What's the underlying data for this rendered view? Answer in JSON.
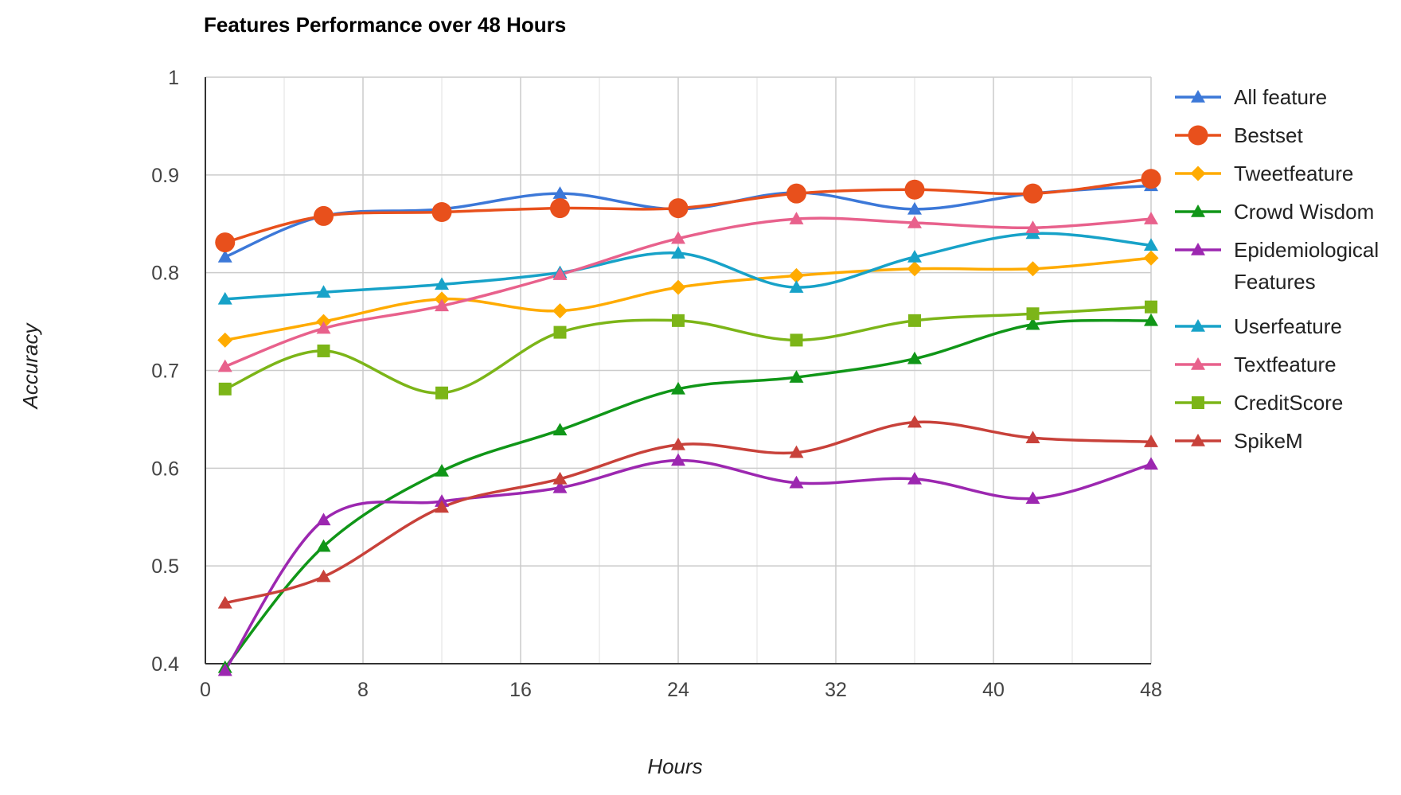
{
  "chart_data": {
    "type": "line",
    "title": "Features Performance over 48 Hours",
    "xlabel": "Hours",
    "ylabel": "Accuracy",
    "xlim": [
      0,
      48
    ],
    "ylim": [
      0.4,
      1
    ],
    "x_ticks": [
      "0",
      "8",
      "16",
      "24",
      "32",
      "40",
      "48"
    ],
    "y_ticks": [
      "0.4",
      "0.5",
      "0.6",
      "0.7",
      "0.8",
      "0.9",
      "1"
    ],
    "grid": true,
    "smooth": true,
    "legend_position": "right",
    "x": [
      1,
      6,
      12,
      18,
      24,
      30,
      36,
      42,
      48
    ],
    "series": [
      {
        "name": "All feature",
        "color": "#3c78d8",
        "marker": "triangle",
        "values": [
          0.816,
          0.858,
          0.865,
          0.881,
          0.865,
          0.882,
          0.865,
          0.881,
          0.889
        ]
      },
      {
        "name": "Bestset",
        "color": "#e8501c",
        "marker": "circle",
        "values": [
          0.831,
          0.858,
          0.862,
          0.866,
          0.866,
          0.881,
          0.885,
          0.881,
          0.896
        ]
      },
      {
        "name": "Tweetfeature",
        "color": "#ffab00",
        "marker": "diamond",
        "values": [
          0.731,
          0.75,
          0.773,
          0.761,
          0.785,
          0.797,
          0.804,
          0.804,
          0.815
        ]
      },
      {
        "name": "Crowd Wisdom",
        "color": "#109618",
        "marker": "triangle",
        "values": [
          0.396,
          0.52,
          0.597,
          0.639,
          0.681,
          0.693,
          0.712,
          0.747,
          0.751
        ]
      },
      {
        "name": "Epidemiological Features",
        "label_lines": [
          "Epidemiological",
          "Features"
        ],
        "color": "#9c27b0",
        "marker": "triangle",
        "values": [
          0.393,
          0.547,
          0.566,
          0.58,
          0.608,
          0.585,
          0.589,
          0.569,
          0.604
        ]
      },
      {
        "name": "Userfeature",
        "color": "#17a2c8",
        "marker": "triangle",
        "values": [
          0.773,
          0.78,
          0.788,
          0.8,
          0.82,
          0.785,
          0.816,
          0.84,
          0.828
        ]
      },
      {
        "name": "Textfeature",
        "color": "#e8618c",
        "marker": "triangle",
        "values": [
          0.704,
          0.743,
          0.766,
          0.798,
          0.835,
          0.855,
          0.851,
          0.846,
          0.855
        ]
      },
      {
        "name": "CreditScore",
        "color": "#7cb518",
        "marker": "square",
        "values": [
          0.681,
          0.72,
          0.677,
          0.739,
          0.751,
          0.731,
          0.751,
          0.758,
          0.765
        ]
      },
      {
        "name": "SpikeM",
        "color": "#c8413a",
        "marker": "triangle",
        "values": [
          0.462,
          0.489,
          0.56,
          0.589,
          0.624,
          0.616,
          0.647,
          0.631,
          0.627
        ]
      }
    ]
  }
}
